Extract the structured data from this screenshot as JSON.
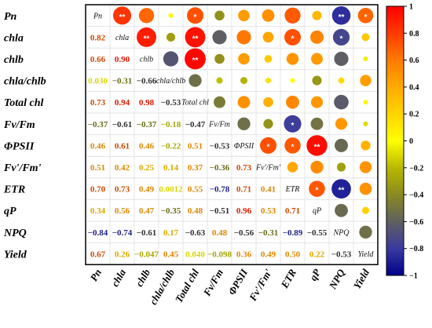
{
  "chart_data": {
    "type": "heatmap",
    "variables": [
      "Pn",
      "chla",
      "chlb",
      "chla/chlb",
      "Total chl",
      "Fv/Fm",
      "ΦPSII",
      "Fv'/Fm'",
      "ETR",
      "qP",
      "NPQ",
      "Yield"
    ],
    "row_labels": [
      "Pn",
      "chla",
      "chlb",
      "chla/chlb",
      "Total chl",
      "Fv/Fm",
      "ΦPSII",
      "Fv'/Fm'",
      "ETR",
      "qP",
      "NPQ",
      "Yield"
    ],
    "col_labels": [
      "Pn",
      "chla",
      "chlb",
      "chla/chlb",
      "Total chl",
      "Fv/Fm",
      "ΦPSII",
      "Fv'/Fm'",
      "ETR",
      "qP",
      "NPQ",
      "Yield"
    ],
    "lower_labels": [
      [],
      [
        "0.82"
      ],
      [
        "0.66",
        "0.90"
      ],
      [
        "0.030",
        "−0.31",
        "−0.66"
      ],
      [
        "0.73",
        "0.94",
        "0.98",
        "−0.53"
      ],
      [
        "−0.37",
        "−0.61",
        "−0.37",
        "−0.18",
        "−0.47"
      ],
      [
        "0.46",
        "0.61",
        "0.46",
        "−0.22",
        "0.51",
        "−0.53"
      ],
      [
        "0.51",
        "0.42",
        "0.25",
        "0.14",
        "0.37",
        "−0.36",
        "0.73"
      ],
      [
        "0.70",
        "0.73",
        "0.49",
        "0.0012",
        "0.55",
        "−0.78",
        "0.71",
        "0.41"
      ],
      [
        "0.34",
        "0.56",
        "0.47",
        "−0.35",
        "0.48",
        "−0.51",
        "0.96",
        "0.53",
        "0.71"
      ],
      [
        "−0.84",
        "−0.74",
        "−0.61",
        "0.17",
        "−0.63",
        "0.48",
        "−0.56",
        "−0.31",
        "−0.89",
        "−0.55"
      ],
      [
        "0.67",
        "0.26",
        "−0.047",
        "0.45",
        "0.040",
        "−0.098",
        "0.36",
        "0.49",
        "0.50",
        "0.22",
        "−0.53"
      ]
    ],
    "lower": [
      [],
      [
        0.82
      ],
      [
        0.66,
        0.9
      ],
      [
        0.03,
        -0.31,
        -0.66
      ],
      [
        0.73,
        0.94,
        0.98,
        -0.53
      ],
      [
        -0.37,
        -0.61,
        -0.37,
        -0.18,
        -0.47
      ],
      [
        0.46,
        0.61,
        0.46,
        -0.22,
        0.51,
        -0.53
      ],
      [
        0.51,
        0.42,
        0.25,
        0.14,
        0.37,
        -0.36,
        0.73
      ],
      [
        0.7,
        0.73,
        0.49,
        0.0012,
        0.55,
        -0.78,
        0.71,
        0.41
      ],
      [
        0.34,
        0.56,
        0.47,
        -0.35,
        0.48,
        -0.51,
        0.96,
        0.53,
        0.71
      ],
      [
        -0.84,
        -0.74,
        -0.61,
        0.17,
        -0.63,
        0.48,
        -0.56,
        -0.31,
        -0.89,
        -0.55
      ],
      [
        0.67,
        0.26,
        -0.047,
        0.45,
        0.04,
        -0.098,
        0.36,
        0.49,
        0.5,
        0.22,
        -0.53
      ]
    ],
    "significance": {
      "0-1": "**",
      "0-4": "*",
      "0-10": "**",
      "0-11": "*",
      "1-2": "**",
      "1-4": "**",
      "1-8": "*",
      "1-10": "*",
      "2-4": "**",
      "5-8": "*",
      "6-7": "*",
      "6-8": "*",
      "6-9": "**",
      "8-9": "*",
      "8-10": "**"
    },
    "lower_triangle": "numbers",
    "upper_triangle": "circles",
    "diagonal": "variable names",
    "colorbar": {
      "ticks": [
        "1",
        "0.8",
        "0.6",
        "0.4",
        "0.2",
        "0",
        "−0.2",
        "−0.4",
        "−0.6",
        "−0.8",
        "−1"
      ],
      "range": [
        -1,
        1
      ],
      "colors": [
        "#00008b",
        "#3a3aa0",
        "#606060",
        "#8a8a20",
        "#b8b800",
        "#ffff00",
        "#ffd400",
        "#ffaa00",
        "#ff7a00",
        "#ff3a00",
        "#ff0000"
      ]
    },
    "xlabel": "",
    "ylabel": "",
    "title": ""
  }
}
